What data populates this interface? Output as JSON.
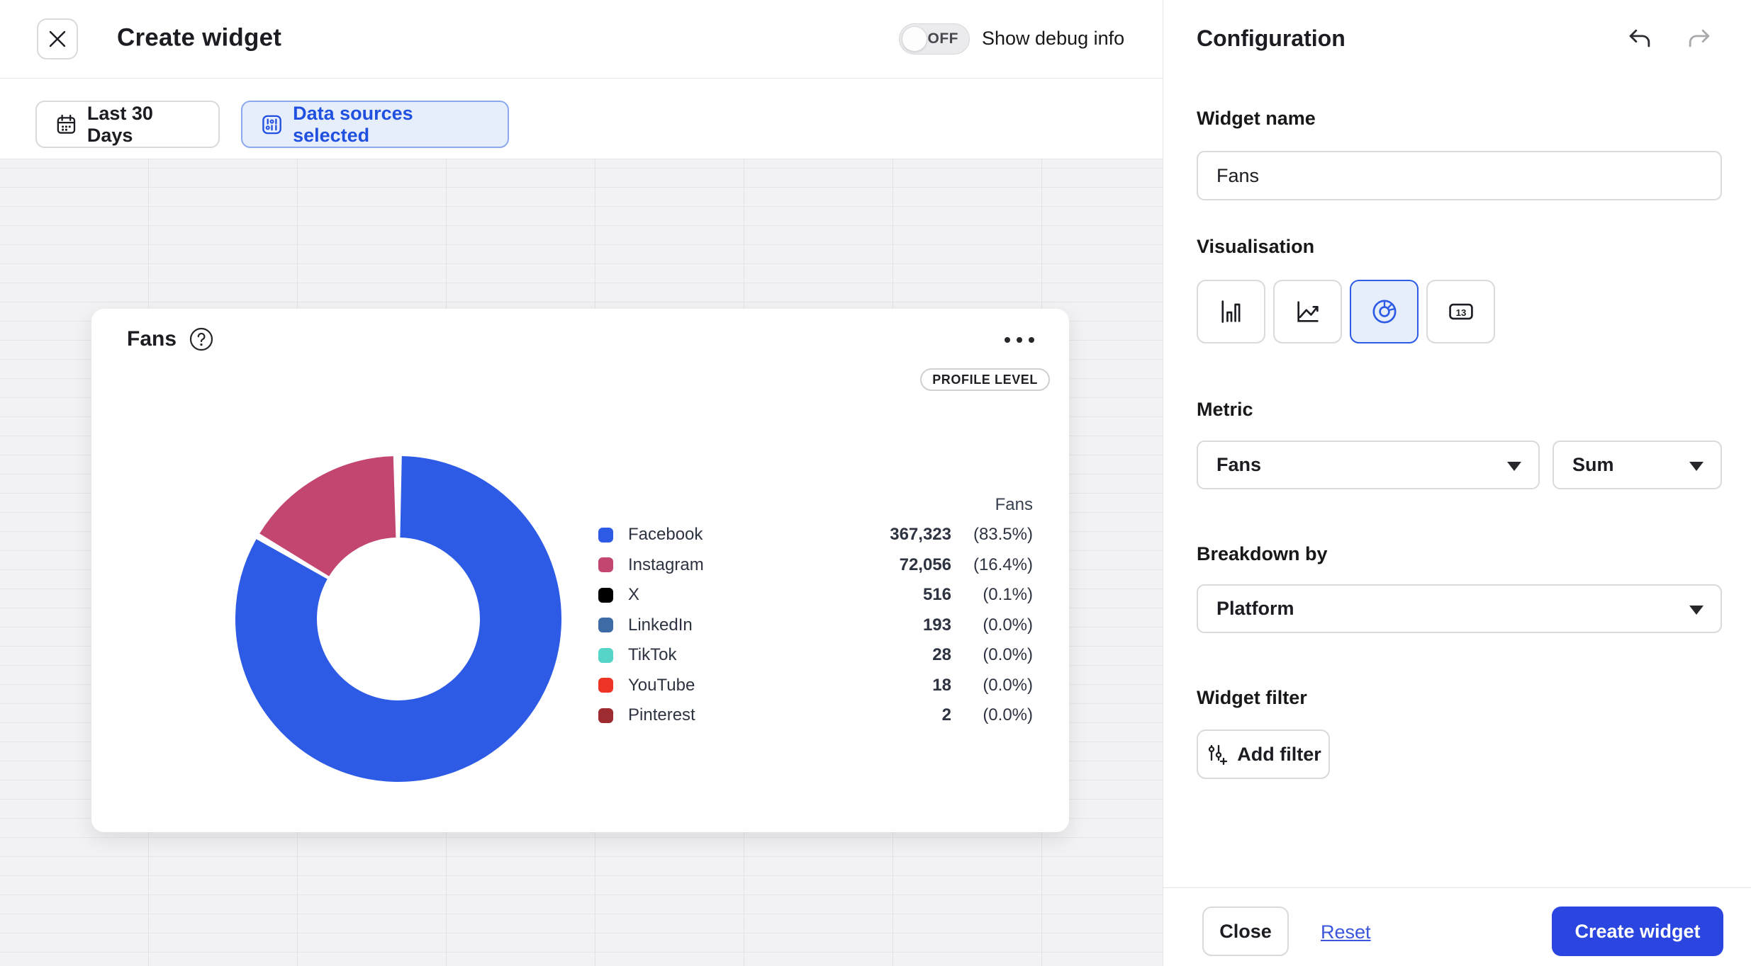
{
  "header": {
    "title": "Create widget",
    "debug_toggle_state": "OFF",
    "debug_label": "Show debug info"
  },
  "toolbar": {
    "date_range_label": "Last 30 Days",
    "data_sources_label": "Data sources selected"
  },
  "widget_preview": {
    "title": "Fans",
    "badge": "PROFILE LEVEL",
    "legend_column_header": "Fans"
  },
  "chart_data": {
    "type": "pie",
    "donut": true,
    "title": "Fans",
    "legend_position": "right",
    "value_column_header": "Fans",
    "slices": [
      {
        "label": "Facebook",
        "value": 367323,
        "value_display": "367,323",
        "pct_display": "(83.5%)",
        "color": "#2e5be5"
      },
      {
        "label": "Instagram",
        "value": 72056,
        "value_display": "72,056",
        "pct_display": "(16.4%)",
        "color": "#c2466f"
      },
      {
        "label": "X",
        "value": 516,
        "value_display": "516",
        "pct_display": "(0.1%)",
        "color": "#000000"
      },
      {
        "label": "LinkedIn",
        "value": 193,
        "value_display": "193",
        "pct_display": "(0.0%)",
        "color": "#3c6ba6"
      },
      {
        "label": "TikTok",
        "value": 28,
        "value_display": "28",
        "pct_display": "(0.0%)",
        "color": "#57d4c8"
      },
      {
        "label": "YouTube",
        "value": 18,
        "value_display": "18",
        "pct_display": "(0.0%)",
        "color": "#ee3424"
      },
      {
        "label": "Pinterest",
        "value": 2,
        "value_display": "2",
        "pct_display": "(0.0%)",
        "color": "#9e2b2f"
      }
    ]
  },
  "config": {
    "title": "Configuration",
    "widget_name_label": "Widget name",
    "widget_name_value": "Fans",
    "visualisation_label": "Visualisation",
    "visualisation_selected": "donut-chart",
    "metric_label": "Metric",
    "metric_value": "Fans",
    "aggregation_value": "Sum",
    "breakdown_label": "Breakdown by",
    "breakdown_value": "Platform",
    "widget_filter_label": "Widget filter",
    "add_filter_label": "Add filter",
    "number_icon_text": "13"
  },
  "footer": {
    "close_label": "Close",
    "reset_label": "Reset",
    "create_label": "Create widget"
  },
  "colors": {
    "accent_blue": "#2e5be5",
    "accent_text_blue": "#2050df",
    "button_blue": "#2b45e0",
    "selected_bg": "#e7eefb",
    "canvas_bg": "#f2f2f4",
    "grid_line": "#e3e3e6"
  }
}
